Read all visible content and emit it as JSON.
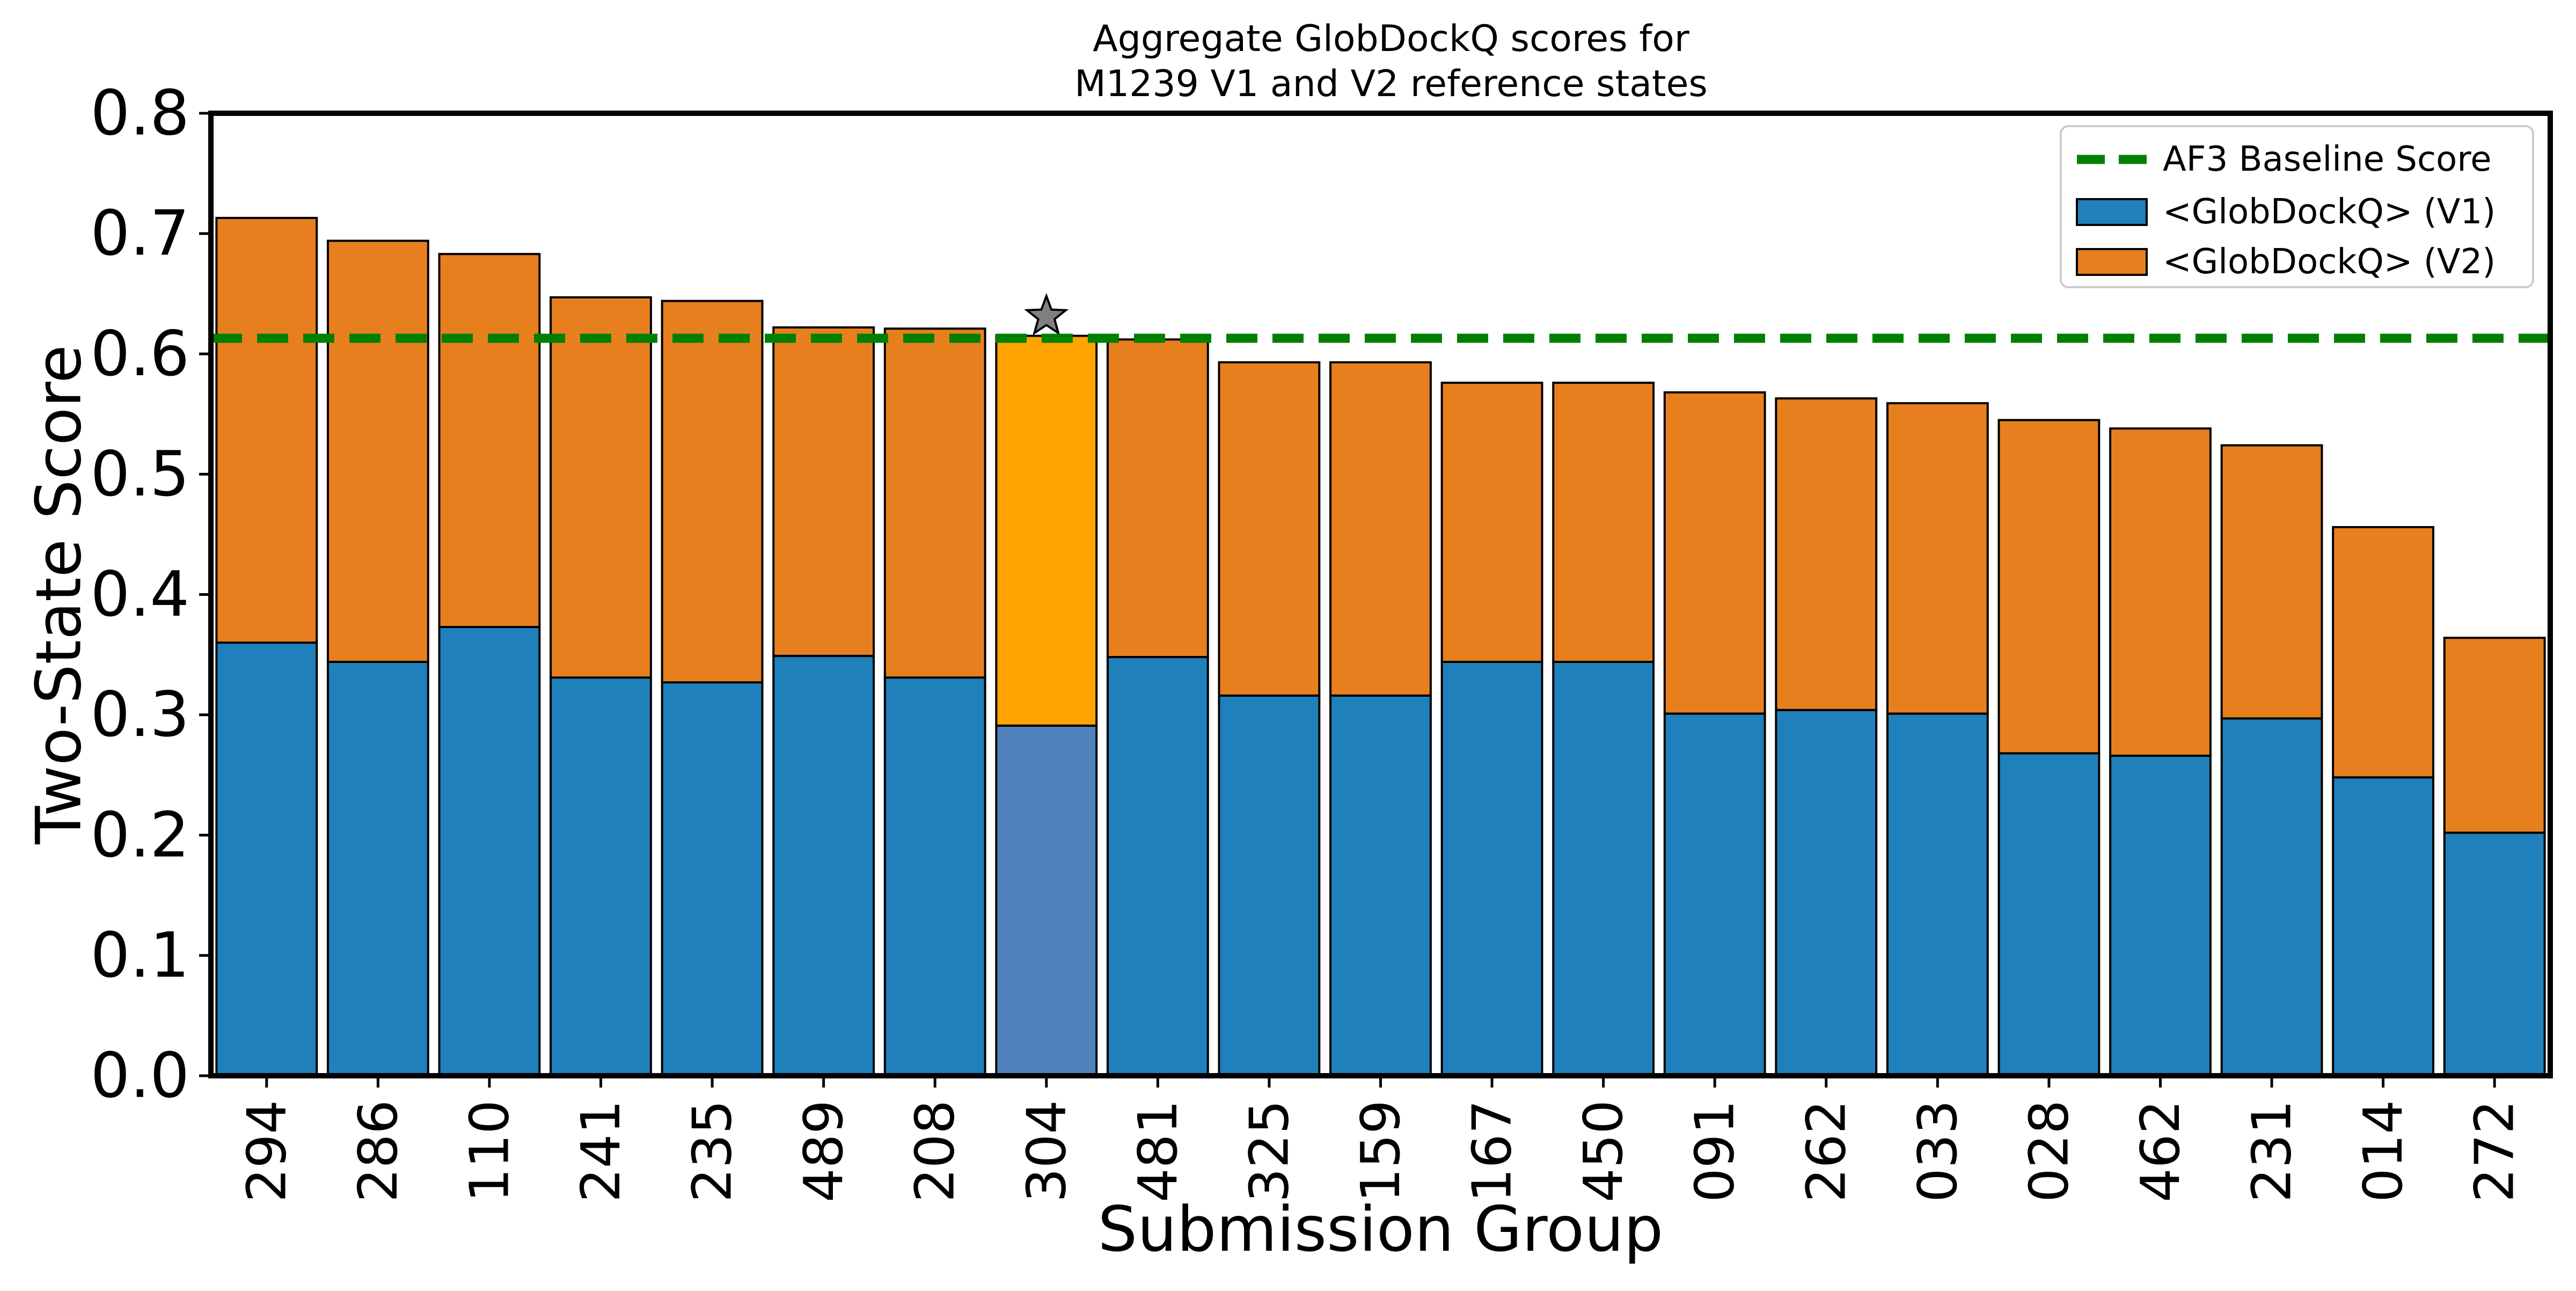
{
  "chart_data": {
    "type": "bar",
    "stacked": true,
    "title": "Aggregate GlobDockQ scores for\nM1239 V1 and V2 reference states",
    "xlabel": "Submission Group",
    "ylabel": "Two-State Score",
    "ylim": [
      0,
      0.8
    ],
    "yticks": [
      "0.0",
      "0.1",
      "0.2",
      "0.3",
      "0.4",
      "0.5",
      "0.6",
      "0.7",
      "0.8"
    ],
    "categories": [
      "294",
      "286",
      "110",
      "241",
      "235",
      "489",
      "208",
      "304",
      "481",
      "325",
      "159",
      "167",
      "450",
      "091",
      "262",
      "033",
      "028",
      "462",
      "231",
      "014",
      "272"
    ],
    "series": [
      {
        "name": "<GlobDockQ> (V1)",
        "color": "#1f80bb",
        "values": [
          0.36,
          0.344,
          0.373,
          0.331,
          0.327,
          0.349,
          0.331,
          0.291,
          0.348,
          0.316,
          0.316,
          0.344,
          0.344,
          0.301,
          0.304,
          0.301,
          0.268,
          0.266,
          0.297,
          0.248,
          0.202
        ]
      },
      {
        "name": "<GlobDockQ> (V2)",
        "color": "#e87f1f",
        "values": [
          0.353,
          0.35,
          0.31,
          0.316,
          0.317,
          0.273,
          0.29,
          0.324,
          0.264,
          0.277,
          0.277,
          0.232,
          0.232,
          0.267,
          0.259,
          0.258,
          0.277,
          0.272,
          0.227,
          0.208,
          0.162
        ]
      }
    ],
    "highlight": {
      "category": "304",
      "v1_color": "#4f81bd",
      "v2_color": "#ffa300",
      "marker": "star",
      "marker_color": "#808080"
    },
    "baseline": {
      "name": "AF3 Baseline Score",
      "value": 0.613,
      "color": "#008000",
      "style": "dashed"
    },
    "legend_position": "top-right",
    "grid": false
  }
}
